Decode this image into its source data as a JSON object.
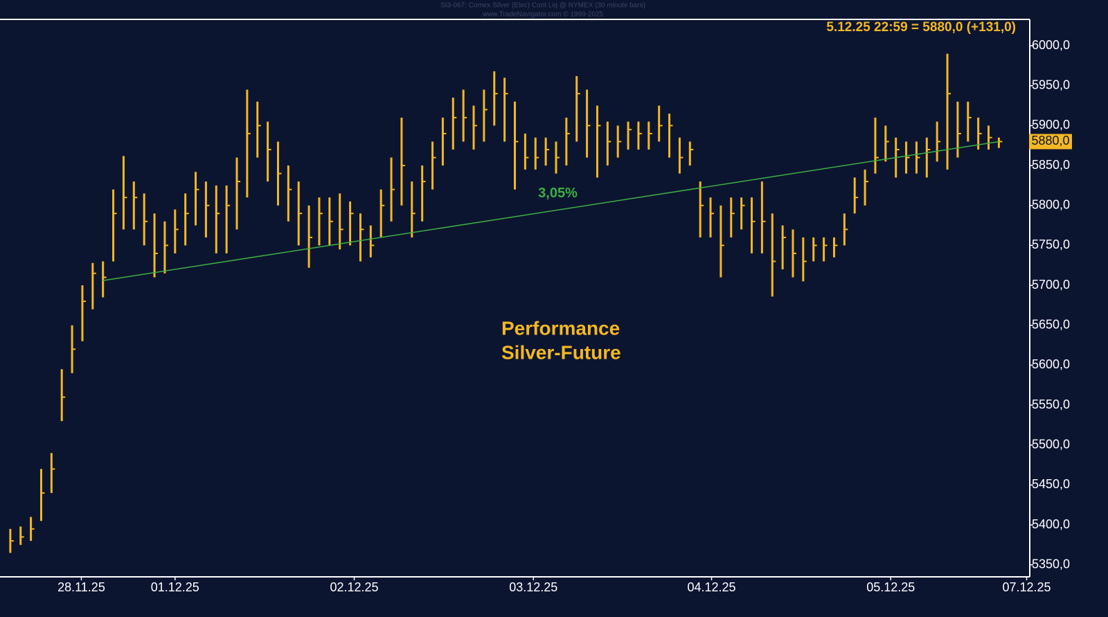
{
  "chart_data": {
    "type": "ohlc",
    "title": "SI3-067: Comex Silver (Elec) Cont Liq @ NYMEX  (30 minute bars)",
    "subtitle": "www.TradeNavigator.com © 1999-2025",
    "header": "5.12.25 22:59 = 5880,0 (+131,0)",
    "annotation": [
      "Performance",
      "Silver-Future"
    ],
    "last_price": {
      "value": 5880,
      "label": "5880,0"
    },
    "color": "#f5b822",
    "trend_line": {
      "x": [
        10,
        97
      ],
      "y": [
        5706,
        5880
      ],
      "label": "3,05%",
      "color": "#3cb043"
    },
    "xlim": [
      0,
      100
    ],
    "xticks": [
      {
        "value": 7.9,
        "label": "28.11.25"
      },
      {
        "value": 17,
        "label": "01.12.25"
      },
      {
        "value": 34.4,
        "label": "02.12.25"
      },
      {
        "value": 51.8,
        "label": "03.12.25"
      },
      {
        "value": 69.1,
        "label": "04.12.25"
      },
      {
        "value": 86.5,
        "label": "05.12.25"
      },
      {
        "value": 99.7,
        "label": "07.12.25"
      }
    ],
    "ylim": [
      5335,
      6033
    ],
    "yticks": [
      {
        "value": 5350,
        "label": "5350,0"
      },
      {
        "value": 5400,
        "label": "5400,0"
      },
      {
        "value": 5450,
        "label": "5450,0"
      },
      {
        "value": 5500,
        "label": "5500,0"
      },
      {
        "value": 5550,
        "label": "5550,0"
      },
      {
        "value": 5600,
        "label": "5600,0"
      },
      {
        "value": 5650,
        "label": "5650,0"
      },
      {
        "value": 5700,
        "label": "5700,0"
      },
      {
        "value": 5750,
        "label": "5750,0"
      },
      {
        "value": 5800,
        "label": "5800,0"
      },
      {
        "value": 5850,
        "label": "5850,0"
      },
      {
        "value": 5900,
        "label": "5900,0"
      },
      {
        "value": 5950,
        "label": "5950,0"
      },
      {
        "value": 6000,
        "label": "6000,0"
      }
    ],
    "x": [
      1,
      2,
      3,
      4,
      5,
      6,
      7,
      8,
      9,
      10,
      11,
      12,
      13,
      14,
      15,
      16,
      17,
      18,
      19,
      20,
      21,
      22,
      23,
      24,
      25,
      26,
      27,
      28,
      29,
      30,
      31,
      32,
      33,
      34,
      35,
      36,
      37,
      38,
      39,
      40,
      41,
      42,
      43,
      44,
      45,
      46,
      47,
      48,
      49,
      50,
      51,
      52,
      53,
      54,
      55,
      56,
      57,
      58,
      59,
      60,
      61,
      62,
      63,
      64,
      65,
      66,
      67,
      68,
      69,
      70,
      71,
      72,
      73,
      74,
      75,
      76,
      77,
      78,
      79,
      80,
      81,
      82,
      83,
      84,
      85,
      86,
      87,
      88,
      89,
      90,
      91,
      92,
      93,
      94,
      95,
      96,
      97
    ],
    "high": [
      5395,
      5398,
      5410,
      5470,
      5490,
      5595,
      5650,
      5700,
      5728,
      5730,
      5820,
      5862,
      5830,
      5815,
      5790,
      5780,
      5795,
      5815,
      5842,
      5830,
      5825,
      5825,
      5860,
      5945,
      5930,
      5905,
      5880,
      5850,
      5830,
      5800,
      5810,
      5810,
      5815,
      5805,
      5790,
      5775,
      5820,
      5860,
      5910,
      5830,
      5850,
      5880,
      5910,
      5935,
      5945,
      5925,
      5945,
      5968,
      5960,
      5930,
      5890,
      5885,
      5885,
      5880,
      5910,
      5962,
      5945,
      5925,
      5905,
      5900,
      5905,
      5905,
      5905,
      5925,
      5915,
      5885,
      5880,
      5830,
      5810,
      5800,
      5810,
      5810,
      5810,
      5830,
      5790,
      5775,
      5770,
      5760,
      5760,
      5760,
      5760,
      5790,
      5835,
      5845,
      5910,
      5900,
      5885,
      5880,
      5880,
      5885,
      5905,
      5990,
      5930,
      5930,
      5910,
      5900,
      5885
    ],
    "low": [
      5365,
      5375,
      5380,
      5405,
      5440,
      5530,
      5590,
      5630,
      5670,
      5685,
      5730,
      5770,
      5770,
      5750,
      5710,
      5715,
      5740,
      5750,
      5775,
      5760,
      5740,
      5740,
      5770,
      5810,
      5860,
      5830,
      5800,
      5780,
      5750,
      5722,
      5750,
      5750,
      5745,
      5750,
      5730,
      5735,
      5760,
      5780,
      5800,
      5760,
      5780,
      5820,
      5850,
      5870,
      5880,
      5870,
      5880,
      5900,
      5880,
      5820,
      5845,
      5845,
      5850,
      5840,
      5850,
      5880,
      5860,
      5835,
      5850,
      5860,
      5870,
      5870,
      5870,
      5880,
      5860,
      5840,
      5850,
      5760,
      5760,
      5710,
      5760,
      5770,
      5740,
      5740,
      5686,
      5720,
      5710,
      5705,
      5730,
      5730,
      5735,
      5750,
      5790,
      5800,
      5840,
      5855,
      5835,
      5840,
      5840,
      5835,
      5855,
      5845,
      5860,
      5880,
      5870,
      5870,
      5872
    ],
    "close": [
      5380,
      5385,
      5395,
      5440,
      5470,
      5560,
      5620,
      5680,
      5715,
      5710,
      5790,
      5810,
      5810,
      5780,
      5740,
      5750,
      5770,
      5790,
      5820,
      5800,
      5790,
      5800,
      5830,
      5890,
      5900,
      5870,
      5840,
      5820,
      5790,
      5760,
      5790,
      5780,
      5770,
      5790,
      5770,
      5750,
      5800,
      5820,
      5850,
      5790,
      5830,
      5860,
      5890,
      5910,
      5910,
      5900,
      5920,
      5940,
      5940,
      5880,
      5860,
      5860,
      5870,
      5860,
      5890,
      5940,
      5900,
      5900,
      5880,
      5880,
      5895,
      5890,
      5890,
      5900,
      5900,
      5860,
      5870,
      5800,
      5790,
      5750,
      5790,
      5800,
      5780,
      5780,
      5730,
      5760,
      5740,
      5730,
      5750,
      5750,
      5750,
      5770,
      5810,
      5830,
      5860,
      5880,
      5870,
      5860,
      5860,
      5870,
      5880,
      5940,
      5890,
      5910,
      5890,
      5885,
      5880
    ]
  }
}
